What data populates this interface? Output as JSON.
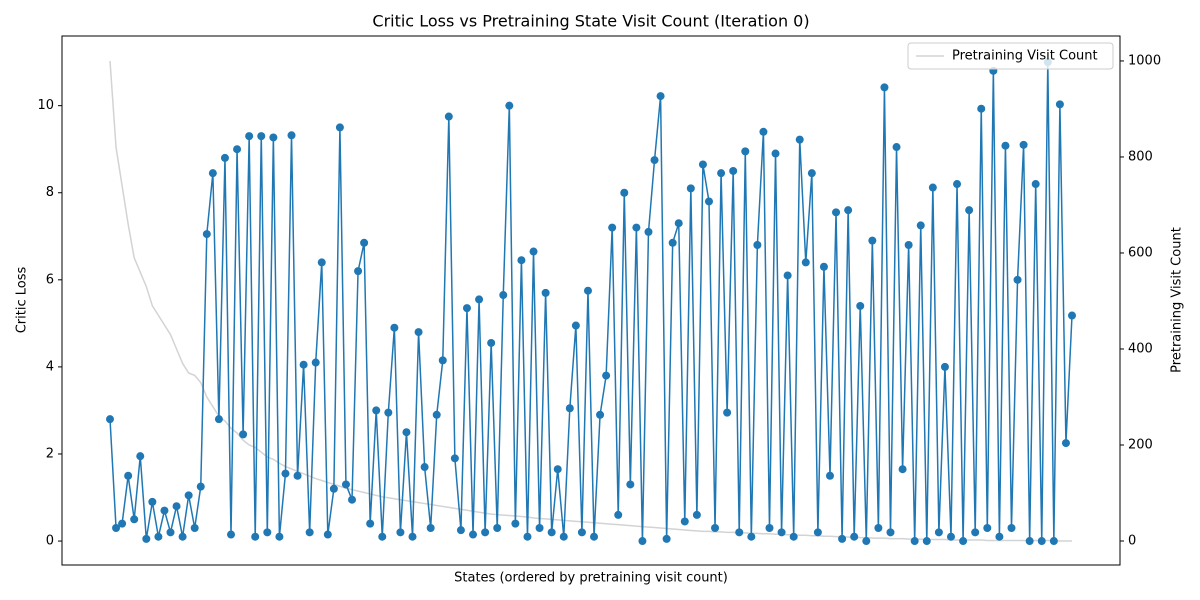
{
  "chart_data": {
    "type": "line",
    "title": "Critic Loss vs Pretraining State Visit Count (Iteration 0)",
    "x_label": "States (ordered by pretraining visit count)",
    "y_label": "Critic Loss",
    "y2_label": "Pretraining Visit Count",
    "ylim": [
      -0.55,
      11.6
    ],
    "yticks": [
      0,
      2,
      4,
      6,
      8,
      10
    ],
    "y2lim": [
      -50,
      1052
    ],
    "y2ticks": [
      0,
      200,
      400,
      600,
      800,
      1000
    ],
    "legend": "upper right",
    "series": [
      {
        "color": "#1f77b4",
        "marker": "o",
        "values": [
          2.8,
          0.3,
          0.4,
          1.5,
          0.5,
          1.95,
          0.05,
          0.9,
          0.1,
          0.7,
          0.2,
          0.8,
          0.1,
          1.05,
          0.3,
          1.25,
          7.05,
          8.45,
          2.8,
          8.8,
          0.15,
          9.0,
          2.45,
          9.3,
          0.1,
          9.3,
          0.2,
          9.27,
          0.1,
          1.55,
          9.32,
          1.5,
          4.05,
          0.2,
          4.1,
          6.4,
          0.15,
          1.2,
          9.5,
          1.3,
          0.95,
          6.2,
          6.85,
          0.4,
          3.0,
          0.1,
          2.95,
          4.9,
          0.2,
          2.5,
          0.1,
          4.8,
          1.7,
          0.3,
          2.9,
          4.15,
          9.75,
          1.9,
          0.25,
          5.35,
          0.15,
          5.55,
          0.2,
          4.55,
          0.3,
          5.65,
          10.0,
          0.4,
          6.45,
          0.1,
          6.65,
          0.3,
          5.7,
          0.2,
          1.65,
          0.1,
          3.05,
          4.95,
          0.2,
          5.75,
          0.1,
          2.9,
          3.8,
          7.2,
          0.6,
          8.0,
          1.3,
          7.2,
          0.0,
          7.1,
          8.75,
          10.22,
          0.05,
          6.85,
          7.3,
          0.45,
          8.1,
          0.6,
          8.65,
          7.8,
          0.3,
          8.45,
          2.95,
          8.5,
          0.2,
          8.95,
          0.1,
          6.8,
          9.4,
          0.3,
          8.9,
          0.2,
          6.1,
          0.1,
          9.22,
          6.4,
          8.45,
          0.2,
          6.3,
          1.5,
          7.55,
          0.05,
          7.6,
          0.1,
          5.4,
          0.0,
          6.9,
          0.3,
          10.42,
          0.2,
          9.05,
          1.65,
          6.8,
          0.0,
          7.25,
          0.0,
          8.12,
          0.2,
          4.0,
          0.1,
          8.2,
          0.0,
          7.6,
          0.2,
          9.93,
          0.3,
          10.8,
          0.1,
          9.08,
          0.3,
          6.0,
          9.1,
          0.0,
          8.2,
          0.0,
          11.0,
          0.0,
          10.03,
          2.25,
          5.18
        ]
      },
      {
        "name": "Pretraining Visit Count",
        "color": "#d3d3d3",
        "axis": "y2",
        "values": [
          1000,
          820,
          740,
          660,
          590,
          560,
          530,
          490,
          470,
          450,
          430,
          400,
          370,
          350,
          345,
          330,
          300,
          280,
          260,
          250,
          235,
          225,
          210,
          200,
          195,
          185,
          175,
          170,
          162,
          155,
          150,
          145,
          140,
          135,
          130,
          126,
          122,
          118,
          114,
          110,
          107,
          104,
          101,
          98,
          95,
          92,
          90,
          88,
          86,
          84,
          82,
          80,
          78,
          76,
          74,
          72,
          70,
          68,
          66,
          64,
          62,
          60,
          58,
          56,
          55,
          54,
          53,
          52,
          51,
          50,
          48,
          47,
          46,
          45,
          44,
          43,
          42,
          41,
          40,
          39,
          38,
          37,
          36,
          35,
          34,
          33,
          32,
          31,
          30,
          29,
          28,
          27,
          26,
          25,
          24,
          23,
          22,
          21,
          20,
          20,
          19,
          19,
          18,
          18,
          17,
          17,
          16,
          16,
          15,
          15,
          14,
          14,
          13,
          13,
          12,
          12,
          11,
          11,
          10,
          10,
          9,
          9,
          8,
          8,
          7,
          7,
          6,
          6,
          6,
          5,
          5,
          5,
          4,
          4,
          4,
          3,
          3,
          3,
          3,
          2,
          2,
          2,
          2,
          2,
          2,
          1,
          1,
          1,
          1,
          1,
          1,
          1,
          1,
          1,
          1,
          1,
          0,
          0,
          0,
          0
        ]
      }
    ]
  }
}
